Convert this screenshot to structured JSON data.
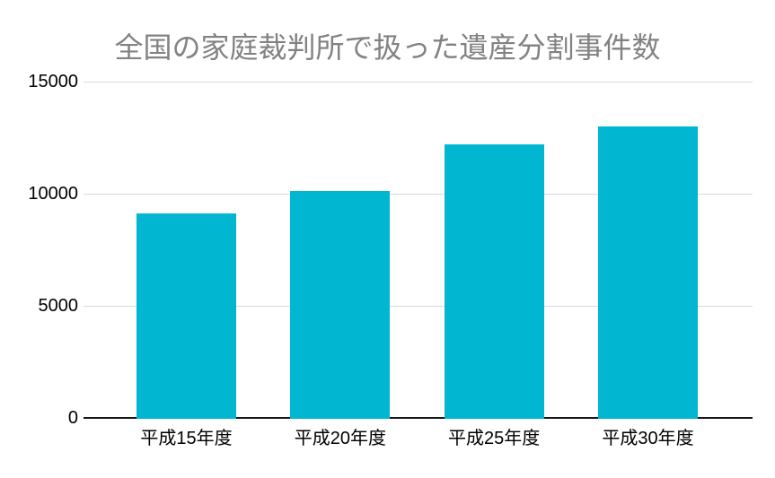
{
  "title": "全国の家庭裁判所で扱った遺産分割事件数",
  "colors": {
    "bar": "#00b6d1",
    "title_text": "#828282",
    "axis_text": "#000000",
    "gridline": "#d9d9d9",
    "baseline": "#161616",
    "background": "#ffffff"
  },
  "chart_data": {
    "type": "bar",
    "title": "全国の家庭裁判所で扱った遺産分割事件数",
    "categories": [
      "平成15年度",
      "平成20年度",
      "平成25年度",
      "平成30年度"
    ],
    "values": [
      9150,
      10150,
      12250,
      13050
    ],
    "xlabel": "",
    "ylabel": "",
    "ylim": [
      0,
      15000
    ],
    "yticks": [
      0,
      5000,
      10000,
      15000
    ],
    "grid": true,
    "legend": false,
    "bar_color": "#00b6d1"
  }
}
